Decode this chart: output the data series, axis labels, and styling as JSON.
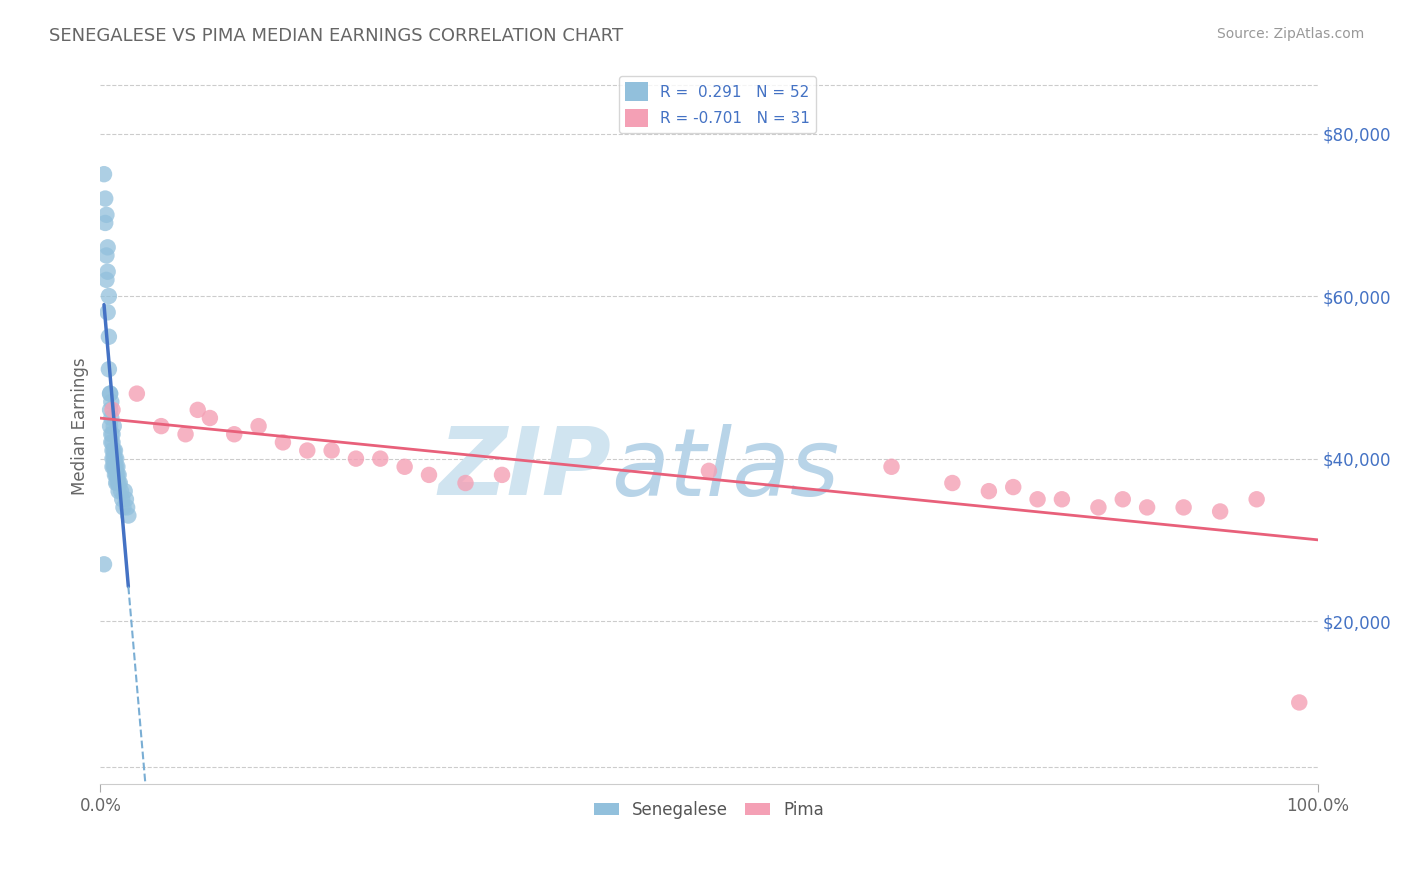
{
  "title": "SENEGALESE VS PIMA MEDIAN EARNINGS CORRELATION CHART",
  "source": "Source: ZipAtlas.com",
  "ylabel": "Median Earnings",
  "ytick_labels": [
    "$20,000",
    "$40,000",
    "$60,000",
    "$80,000"
  ],
  "ytick_values": [
    20000,
    40000,
    60000,
    80000
  ],
  "xmin": 0.0,
  "xmax": 100.0,
  "ymin": 0,
  "ymax": 88000,
  "legend_line1": "R =  0.291   N = 52",
  "legend_line2": "R = -0.701   N = 31",
  "blue_color": "#92C0DC",
  "blue_dark": "#4472C4",
  "blue_dashed": "#7aaed4",
  "pink_color": "#F4A0B5",
  "pink_dark": "#E8607A",
  "watermark_zip": "ZIP",
  "watermark_atlas": "atlas",
  "watermark_color_zip": "#c8dce8",
  "watermark_color_atlas": "#a8c8dc",
  "background_color": "#ffffff",
  "grid_color": "#cccccc",
  "sen_x": [
    0.3,
    0.4,
    0.5,
    0.5,
    0.6,
    0.6,
    0.7,
    0.7,
    0.8,
    0.8,
    0.8,
    0.9,
    0.9,
    0.9,
    1.0,
    1.0,
    1.0,
    1.0,
    1.1,
    1.1,
    1.1,
    1.2,
    1.2,
    1.2,
    1.3,
    1.3,
    1.3,
    1.4,
    1.4,
    1.5,
    1.5,
    1.5,
    1.6,
    1.7,
    1.8,
    1.9,
    2.0,
    2.1,
    2.2,
    2.3,
    0.5,
    0.7,
    0.9,
    1.0,
    1.1,
    1.2,
    1.3,
    1.4,
    0.4,
    0.6,
    0.8,
    0.3
  ],
  "sen_y": [
    75000,
    69000,
    65000,
    62000,
    63000,
    58000,
    55000,
    51000,
    48000,
    46000,
    44000,
    45000,
    43000,
    42000,
    42000,
    41000,
    40000,
    39000,
    41000,
    40000,
    39000,
    40000,
    39000,
    38000,
    39000,
    38000,
    37000,
    38000,
    37000,
    38000,
    37000,
    36000,
    37000,
    36000,
    35000,
    34000,
    36000,
    35000,
    34000,
    33000,
    70000,
    60000,
    47000,
    43000,
    44000,
    41000,
    40000,
    39000,
    72000,
    66000,
    48000,
    27000
  ],
  "pima_x": [
    1.0,
    3.0,
    5.0,
    7.0,
    8.0,
    9.0,
    11.0,
    13.0,
    15.0,
    17.0,
    19.0,
    21.0,
    23.0,
    25.0,
    27.0,
    30.0,
    33.0,
    50.0,
    65.0,
    70.0,
    73.0,
    75.0,
    77.0,
    79.0,
    82.0,
    84.0,
    86.0,
    89.0,
    92.0,
    95.0,
    98.5
  ],
  "pima_y": [
    46000,
    48000,
    44000,
    43000,
    46000,
    45000,
    43000,
    44000,
    42000,
    41000,
    41000,
    40000,
    40000,
    39000,
    38000,
    37000,
    38000,
    38500,
    39000,
    37000,
    36000,
    36500,
    35000,
    35000,
    34000,
    35000,
    34000,
    34000,
    33500,
    35000,
    10000
  ]
}
